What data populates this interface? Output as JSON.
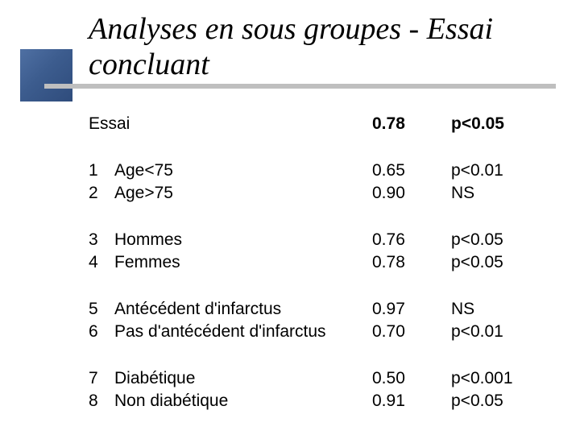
{
  "title": "Analyses en sous groupes - Essai concluant",
  "colors": {
    "accent_square": "#3c5c8e",
    "rule_line": "#bfbfbf",
    "text": "#000000"
  },
  "header": {
    "label": "Essai",
    "value": "0.78",
    "p": "p<0.05"
  },
  "rows": [
    {
      "num": "1",
      "label": "Age<75",
      "value": "0.65",
      "p": "p<0.01"
    },
    {
      "num": "2",
      "label": "Age>75",
      "value": "0.90",
      "p": "NS"
    },
    {
      "num": "3",
      "label": "Hommes",
      "value": "0.76",
      "p": "p<0.05"
    },
    {
      "num": "4",
      "label": "Femmes",
      "value": "0.78",
      "p": "p<0.05"
    },
    {
      "num": "5",
      "label": "Antécédent d'infarctus",
      "value": "0.97",
      "p": "NS"
    },
    {
      "num": "6",
      "label": "Pas d'antécédent d'infarctus",
      "value": "0.70",
      "p": "p<0.01"
    },
    {
      "num": "7",
      "label": "Diabétique",
      "value": "0.50",
      "p": "p<0.001"
    },
    {
      "num": "8",
      "label": "Non diabétique",
      "value": "0.91",
      "p": "p<0.05"
    }
  ]
}
